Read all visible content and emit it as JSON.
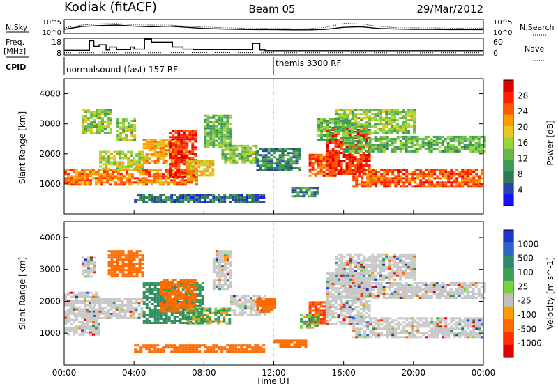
{
  "header": {
    "station": "Kodiak (fitACF)",
    "beam": "Beam 05",
    "date": "29/Mar/2012"
  },
  "strip_labels": {
    "nsky": "N.Sky",
    "nsearch": "N.Search",
    "freq_line1": "Freq.",
    "freq_line2": "[MHz]",
    "nave": "Nave",
    "cpid": "CPID"
  },
  "colors": {
    "power": [
      "#1212ff",
      "#2a3fb0",
      "#2f7a55",
      "#3d9a55",
      "#66b848",
      "#9ad43a",
      "#e8c820",
      "#ff9a00",
      "#ff5a00",
      "#ff2000",
      "#e00000"
    ],
    "velocity": [
      "#1b36c8",
      "#2a66c8",
      "#2f8a6a",
      "#3ca050",
      "#7ad23a",
      "#c0c0c0",
      "#ff9a00",
      "#ff6a00",
      "#ff3000",
      "#e00000"
    ],
    "ground_scatter": "#c8c8c8",
    "axis": "#000000",
    "noon_line": "#aaaaaa"
  },
  "chart_data": [
    {
      "type": "line",
      "name": "noise-panel",
      "ylabel_left": "N.Sky",
      "ylabel_right": "N.Search",
      "left_ticks": [
        "10^5",
        "10^0"
      ],
      "right_ticks": [
        "10^5",
        "10^0"
      ],
      "x_hours": [
        0,
        1,
        2,
        3,
        4,
        5,
        6,
        7,
        8,
        9,
        10,
        11,
        12,
        13,
        14,
        15,
        16,
        17,
        18,
        19,
        20,
        21,
        22,
        23,
        24
      ],
      "series": [
        {
          "name": "N.Sky",
          "style": "solid",
          "values": [
            1.5,
            2.5,
            2.8,
            3.0,
            2.6,
            2.4,
            2.6,
            2.2,
            1.8,
            1.6,
            1.5,
            1.4,
            1.4,
            1.3,
            1.3,
            1.5,
            2.2,
            2.4,
            1.8,
            1.6,
            1.5,
            1.5,
            1.4,
            1.4,
            1.4
          ]
        },
        {
          "name": "N.Search",
          "style": "dotted",
          "values": [
            2.0,
            3.0,
            3.4,
            3.6,
            3.1,
            3.0,
            3.0,
            2.6,
            2.3,
            2.1,
            1.9,
            1.8,
            1.8,
            1.7,
            1.7,
            2.2,
            3.6,
            3.4,
            2.5,
            2.1,
            2.0,
            2.0,
            1.9,
            1.9,
            1.9
          ]
        }
      ]
    },
    {
      "type": "line",
      "name": "frequency-panel",
      "ylabel_left": "Freq. [MHz]",
      "ylabel_right": "Nave",
      "left_ticks": [
        18,
        8
      ],
      "right_ticks": [
        60,
        0
      ],
      "series": [
        {
          "name": "Freq.",
          "style": "step",
          "points": [
            [
              0,
              10.8
            ],
            [
              1.45,
              10.8
            ],
            [
              1.45,
              16.5
            ],
            [
              1.7,
              16.5
            ],
            [
              1.7,
              13.2
            ],
            [
              2.0,
              13.2
            ],
            [
              2.0,
              14.2
            ],
            [
              2.4,
              14.2
            ],
            [
              2.4,
              11.0
            ],
            [
              2.6,
              11.0
            ],
            [
              2.6,
              12.8
            ],
            [
              3.0,
              12.8
            ],
            [
              3.0,
              11.2
            ],
            [
              3.8,
              11.2
            ],
            [
              3.8,
              12.8
            ],
            [
              4.0,
              12.8
            ],
            [
              4.0,
              11.5
            ],
            [
              4.6,
              11.5
            ],
            [
              4.6,
              17.5
            ],
            [
              5.0,
              17.5
            ],
            [
              5.0,
              15.8
            ],
            [
              6.2,
              15.8
            ],
            [
              6.2,
              12.8
            ],
            [
              6.8,
              12.8
            ],
            [
              6.8,
              11.5
            ],
            [
              7.4,
              11.5
            ],
            [
              7.4,
              11.2
            ],
            [
              10.8,
              11.2
            ],
            [
              10.8,
              15.0
            ],
            [
              11.2,
              15.0
            ],
            [
              11.2,
              11.0
            ],
            [
              11.5,
              11.0
            ],
            [
              11.5,
              10.6
            ],
            [
              24,
              10.6
            ]
          ]
        },
        {
          "name": "Nave",
          "style": "dotted",
          "points": [
            [
              0,
              8
            ],
            [
              5,
              8
            ],
            [
              8,
              9
            ],
            [
              12,
              8
            ],
            [
              16,
              8
            ],
            [
              20,
              8
            ],
            [
              24,
              8
            ]
          ]
        }
      ]
    },
    {
      "type": "table",
      "name": "cpid-panel",
      "label": "CPID",
      "segments": [
        {
          "start_hour": 0,
          "end_hour": 12,
          "text": "normalsound (fast) 157 RF"
        },
        {
          "start_hour": 12,
          "end_hour": 24,
          "text": "themis 3300 RF"
        }
      ]
    },
    {
      "type": "heatmap",
      "name": "power-panel",
      "ylabel": "Slant Range [km]",
      "ylim": [
        0,
        4500
      ],
      "yticks": [
        1000,
        2000,
        3000,
        4000
      ],
      "xlim": [
        0,
        24
      ],
      "xticks": [
        "00:00",
        "04:00",
        "08:00",
        "12:00",
        "16:00",
        "20:00",
        "00:00"
      ],
      "colorbar": {
        "label": "Power [dB]",
        "ticks": [
          4,
          8,
          12,
          16,
          20,
          24,
          28
        ],
        "range": [
          0,
          30
        ]
      },
      "bands": [
        {
          "t0": 0.0,
          "t1": 7.6,
          "r0": 950,
          "r1": 1500,
          "value": 22
        },
        {
          "t0": 2.0,
          "t1": 4.5,
          "r0": 1500,
          "r1": 2100,
          "value": 16
        },
        {
          "t0": 4.5,
          "t1": 7.0,
          "r0": 1700,
          "r1": 2500,
          "value": 20
        },
        {
          "t0": 6.0,
          "t1": 7.5,
          "r0": 1200,
          "r1": 2800,
          "value": 26
        },
        {
          "t0": 7.0,
          "t1": 8.5,
          "r0": 1300,
          "r1": 1800,
          "value": 18
        },
        {
          "t0": 1.0,
          "t1": 2.6,
          "r0": 2700,
          "r1": 3500,
          "value": 14
        },
        {
          "t0": 3.0,
          "t1": 4.0,
          "r0": 2500,
          "r1": 3200,
          "value": 14
        },
        {
          "t0": 8.0,
          "t1": 9.5,
          "r0": 2200,
          "r1": 3300,
          "value": 12
        },
        {
          "t0": 4.0,
          "t1": 11.5,
          "r0": 400,
          "r1": 650,
          "value": 6
        },
        {
          "t0": 9.0,
          "t1": 11.0,
          "r0": 1700,
          "r1": 2300,
          "value": 14
        },
        {
          "t0": 11.0,
          "t1": 13.5,
          "r0": 1500,
          "r1": 2200,
          "value": 8
        },
        {
          "t0": 13.0,
          "t1": 14.5,
          "r0": 600,
          "r1": 900,
          "value": 8
        },
        {
          "t0": 14.0,
          "t1": 15.5,
          "r0": 1300,
          "r1": 2000,
          "value": 24
        },
        {
          "t0": 15.0,
          "t1": 17.5,
          "r0": 1300,
          "r1": 2900,
          "value": 26
        },
        {
          "t0": 16.5,
          "t1": 24.0,
          "r0": 900,
          "r1": 1500,
          "value": 24
        },
        {
          "t0": 16.0,
          "t1": 24.0,
          "r0": 2100,
          "r1": 2600,
          "value": 12
        },
        {
          "t0": 15.5,
          "t1": 20.0,
          "r0": 2700,
          "r1": 3500,
          "value": 14
        },
        {
          "t0": 14.5,
          "t1": 16.5,
          "r0": 2500,
          "r1": 3200,
          "value": 12
        }
      ]
    },
    {
      "type": "heatmap",
      "name": "velocity-panel",
      "ylabel": "Slant Range [km]",
      "xlabel": "Time UT",
      "ylim": [
        0,
        4500
      ],
      "yticks": [
        1000,
        2000,
        3000,
        4000
      ],
      "xlim": [
        0,
        24
      ],
      "xticks": [
        "00:00",
        "04:00",
        "08:00",
        "12:00",
        "16:00",
        "20:00",
        "00:00"
      ],
      "colorbar": {
        "label": "Velocity [m s^-1]",
        "ticks": [
          1000,
          500,
          100,
          25,
          -25,
          -100,
          -500,
          -1000
        ]
      },
      "bands": [
        {
          "t0": 0.0,
          "t1": 2.0,
          "r0": 950,
          "r1": 2300,
          "value": 0
        },
        {
          "t0": 1.5,
          "t1": 4.5,
          "r0": 1500,
          "r1": 2100,
          "value": 0
        },
        {
          "t0": 2.5,
          "t1": 4.5,
          "r0": 2800,
          "r1": 3600,
          "value": -300
        },
        {
          "t0": 4.5,
          "t1": 8.0,
          "r0": 1300,
          "r1": 2600,
          "value": 150
        },
        {
          "t0": 5.5,
          "t1": 7.5,
          "r0": 1700,
          "r1": 2700,
          "value": -300
        },
        {
          "t0": 7.0,
          "t1": 9.5,
          "r0": 1300,
          "r1": 1800,
          "value": 60
        },
        {
          "t0": 8.5,
          "t1": 9.5,
          "r0": 2400,
          "r1": 3600,
          "value": 0
        },
        {
          "t0": 1.0,
          "t1": 1.7,
          "r0": 2800,
          "r1": 3400,
          "value": 0
        },
        {
          "t0": 4.0,
          "t1": 11.5,
          "r0": 400,
          "r1": 650,
          "value": -200
        },
        {
          "t0": 12.0,
          "t1": 13.8,
          "r0": 550,
          "r1": 800,
          "value": -300
        },
        {
          "t0": 9.5,
          "t1": 11.5,
          "r0": 1600,
          "r1": 2200,
          "value": 0
        },
        {
          "t0": 11.0,
          "t1": 12.0,
          "r0": 1700,
          "r1": 2100,
          "value": -300
        },
        {
          "t0": 14.0,
          "t1": 15.0,
          "r0": 1300,
          "r1": 2000,
          "value": -400
        },
        {
          "t0": 15.0,
          "t1": 17.5,
          "r0": 1300,
          "r1": 2900,
          "value": 0
        },
        {
          "t0": 16.5,
          "t1": 24.0,
          "r0": 900,
          "r1": 1500,
          "value": 0
        },
        {
          "t0": 16.0,
          "t1": 24.0,
          "r0": 2100,
          "r1": 2600,
          "value": 0
        },
        {
          "t0": 15.5,
          "t1": 20.0,
          "r0": 2700,
          "r1": 3500,
          "value": 0
        },
        {
          "t0": 13.5,
          "t1": 14.5,
          "r0": 1200,
          "r1": 1600,
          "value": 60
        }
      ]
    }
  ]
}
